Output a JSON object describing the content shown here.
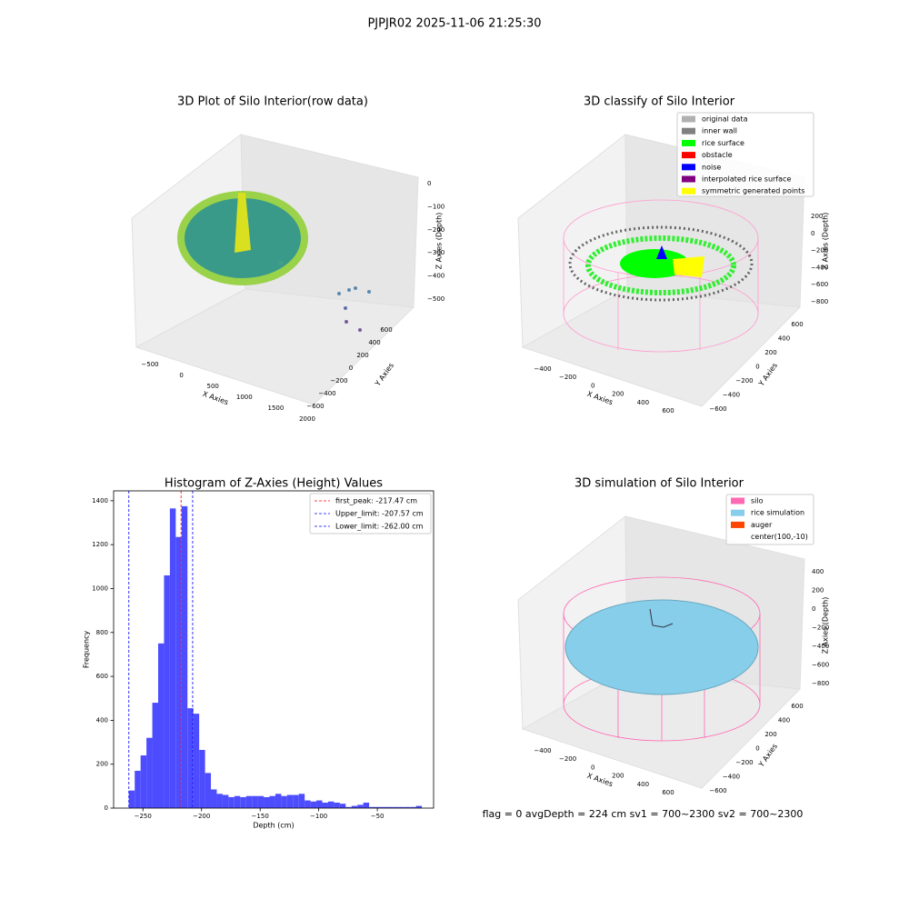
{
  "title": "PJPJR02 2025-11-06 21:25:30",
  "footer": "flag = 0     avgDepth = 224 cm  sv1 = 700~2300  sv2 = 700~2300",
  "chart_data": [
    {
      "type": "scatter3d",
      "title": "3D Plot of Silo Interior(row data)",
      "xlabel": "X Axies",
      "ylabel": "Y Axies",
      "zlabel": "Z Axies (Depth)",
      "xticks": [
        {
          "value": -500,
          "label": "−500"
        },
        0,
        500,
        1000,
        1500,
        2000
      ],
      "yticks": [
        {
          "value": -600,
          "label": "−600"
        },
        {
          "value": -400,
          "label": "−400"
        },
        {
          "value": -200,
          "label": "−200"
        },
        0,
        200,
        400,
        600
      ],
      "zticks": [
        0,
        {
          "value": -100,
          "label": "−100"
        },
        {
          "value": -200,
          "label": "−200"
        },
        {
          "value": -300,
          "label": "−300"
        },
        {
          "value": -400,
          "label": "−400"
        },
        {
          "value": -500,
          "label": "−500"
        }
      ]
    },
    {
      "type": "scatter3d",
      "title": "3D classify of Silo Interior",
      "xlabel": "X Axies",
      "ylabel": "Y Axies",
      "zlabel": "Z Axies (Depth)",
      "xticks": [
        {
          "value": -400,
          "label": "−400"
        },
        {
          "value": -200,
          "label": "−200"
        },
        0,
        200,
        400,
        600
      ],
      "yticks": [
        {
          "value": -600,
          "label": "−600"
        },
        {
          "value": -400,
          "label": "−400"
        },
        {
          "value": -200,
          "label": "−200"
        },
        0,
        200,
        400,
        600
      ],
      "zticks": [
        200,
        0,
        {
          "value": -200,
          "label": "−200"
        },
        {
          "value": -400,
          "label": "−400"
        },
        {
          "value": -600,
          "label": "−600"
        },
        {
          "value": -800,
          "label": "−800"
        }
      ],
      "legend": [
        {
          "name": "original data",
          "color": "#b0b0b0"
        },
        {
          "name": "inner wall",
          "color": "#808080"
        },
        {
          "name": "rice surface",
          "color": "#00ff00"
        },
        {
          "name": "obstacle",
          "color": "#ff0000"
        },
        {
          "name": "noise",
          "color": "#0000ff"
        },
        {
          "name": "interpolated rice surface",
          "color": "#800080"
        },
        {
          "name": "symmetric generated points",
          "color": "#ffff00"
        }
      ]
    },
    {
      "type": "histogram",
      "title": "Histogram of Z-Axies (Height) Values",
      "xlabel": "Depth (cm)",
      "ylabel": "Frequency",
      "color": "#4d4dff",
      "bins": [
        -262,
        -257,
        -252,
        -247,
        -242,
        -237,
        -232,
        -227,
        -222,
        -217,
        -212,
        -207,
        -202,
        -197,
        -192,
        -187,
        -182,
        -177,
        -172,
        -167,
        -162,
        -157,
        -152,
        -147,
        -142,
        -137,
        -132,
        -127,
        -122,
        -117,
        -112,
        -107,
        -102,
        -97,
        -92,
        -87,
        -82,
        -77,
        -72,
        -67,
        -62,
        -57,
        -52,
        -47,
        -42,
        -37,
        -32,
        -27,
        -22,
        -17,
        -12
      ],
      "values": [
        80,
        170,
        240,
        320,
        480,
        750,
        1060,
        1365,
        1235,
        1375,
        455,
        430,
        265,
        160,
        85,
        65,
        60,
        50,
        55,
        50,
        55,
        55,
        55,
        50,
        55,
        65,
        55,
        60,
        60,
        65,
        35,
        30,
        35,
        25,
        30,
        25,
        20,
        5,
        10,
        15,
        25,
        5,
        5,
        5,
        5,
        5,
        5,
        5,
        5,
        10
      ],
      "xlim": [
        -275,
        -2
      ],
      "ylim": [
        0,
        1445
      ],
      "xticks": [
        {
          "value": -250,
          "label": "−250"
        },
        {
          "value": -200,
          "label": "−200"
        },
        {
          "value": -150,
          "label": "−150"
        },
        {
          "value": -100,
          "label": "−100"
        },
        {
          "value": -50,
          "label": "−50"
        }
      ],
      "yticks": [
        0,
        200,
        400,
        600,
        800,
        1000,
        1200,
        1400
      ],
      "lines": [
        {
          "label": "first_peak: -217.47 cm",
          "value": -217.47,
          "color": "#ff0000"
        },
        {
          "label": "Upper_limit: -207.57 cm",
          "value": -207.57,
          "color": "#0000ff"
        },
        {
          "label": "Lower_limit: -262.00 cm",
          "value": -262.0,
          "color": "#0000ff"
        }
      ],
      "legend_loc": "upper right"
    },
    {
      "type": "surface3d",
      "title": "3D simulation of Silo Interior",
      "xlabel": "X Axies",
      "ylabel": "Y Axies",
      "zlabel": "Z Axies (Depth)",
      "xticks": [
        {
          "value": -400,
          "label": "−400"
        },
        {
          "value": -200,
          "label": "−200"
        },
        0,
        200,
        400,
        600
      ],
      "yticks": [
        {
          "value": -600,
          "label": "−600"
        },
        {
          "value": -400,
          "label": "−400"
        },
        {
          "value": -200,
          "label": "−200"
        },
        0,
        200,
        400,
        600
      ],
      "zticks": [
        400,
        200,
        0,
        {
          "value": -200,
          "label": "−200"
        },
        {
          "value": -400,
          "label": "−400"
        },
        {
          "value": -600,
          "label": "−600"
        },
        {
          "value": -800,
          "label": "−800"
        }
      ],
      "legend": [
        {
          "name": "silo",
          "color": "#ff69b4"
        },
        {
          "name": "rice simulation",
          "color": "#87ceeb"
        },
        {
          "name": "auger",
          "color": "#ff4500"
        },
        {
          "name": "center(100,-10)",
          "color": "none"
        }
      ]
    }
  ]
}
